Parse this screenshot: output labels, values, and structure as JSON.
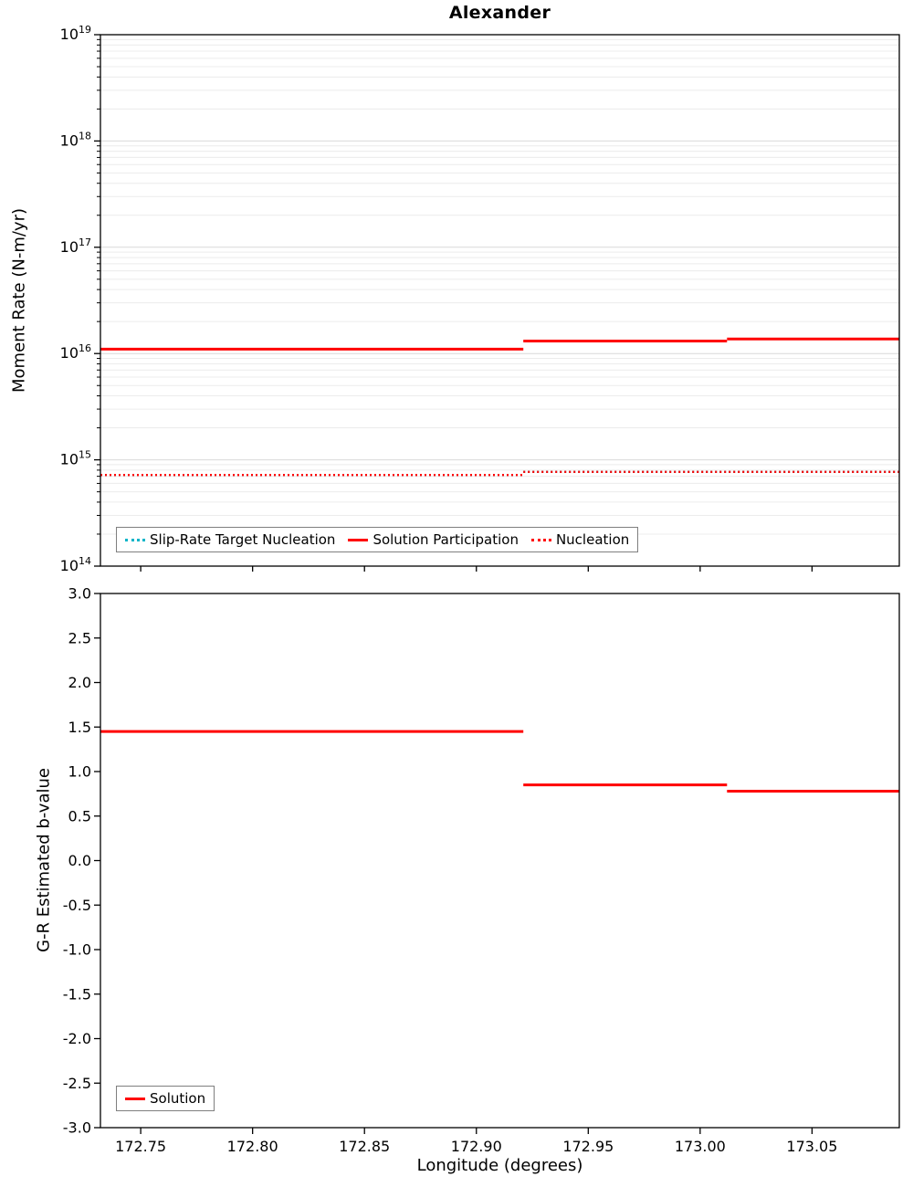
{
  "chart_data": [
    {
      "type": "line",
      "title": "Alexander",
      "ylabel": "Moment Rate (N-m/yr)",
      "yscale": "log",
      "ylim_exp": [
        14,
        19
      ],
      "xlim": [
        172.732,
        173.089
      ],
      "xticks": [
        172.75,
        172.8,
        172.85,
        172.9,
        172.95,
        173.0,
        173.05
      ],
      "grid": true,
      "legend_position": "lower-left",
      "series": [
        {
          "name": "Slip-Rate Target Nucleation",
          "color": "#00b4c8",
          "style": "dotted",
          "segments": [
            [
              [
                172.732,
                720000000000000.0
              ],
              [
                172.921,
                720000000000000.0
              ]
            ],
            [
              [
                172.921,
                770000000000000.0
              ],
              [
                173.089,
                770000000000000.0
              ]
            ]
          ]
        },
        {
          "name": "Solution Participation",
          "color": "#ff0000",
          "style": "solid",
          "segments": [
            [
              [
                172.732,
                1.1e+16
              ],
              [
                172.921,
                1.1e+16
              ]
            ],
            [
              [
                172.921,
                1.31e+16
              ],
              [
                173.012,
                1.31e+16
              ]
            ],
            [
              [
                173.012,
                1.37e+16
              ],
              [
                173.089,
                1.37e+16
              ]
            ]
          ]
        },
        {
          "name": "Nucleation",
          "color": "#ff0000",
          "style": "dotted",
          "segments": [
            [
              [
                172.732,
                720000000000000.0
              ],
              [
                172.921,
                720000000000000.0
              ]
            ],
            [
              [
                172.921,
                770000000000000.0
              ],
              [
                173.089,
                770000000000000.0
              ]
            ]
          ]
        }
      ]
    },
    {
      "type": "line",
      "ylabel": "G-R Estimated b-value",
      "xlabel": "Longitude (degrees)",
      "ylim": [
        -3.0,
        3.0
      ],
      "ytick_step": 0.5,
      "xlim": [
        172.732,
        173.089
      ],
      "xticks": [
        172.75,
        172.8,
        172.85,
        172.9,
        172.95,
        173.0,
        173.05
      ],
      "grid": false,
      "legend_position": "lower-left",
      "series": [
        {
          "name": "Solution",
          "color": "#ff0000",
          "style": "solid",
          "segments": [
            [
              [
                172.732,
                1.45
              ],
              [
                172.921,
                1.45
              ]
            ],
            [
              [
                172.921,
                0.85
              ],
              [
                173.012,
                0.85
              ]
            ],
            [
              [
                173.012,
                0.78
              ],
              [
                173.089,
                0.78
              ]
            ]
          ]
        }
      ]
    }
  ]
}
